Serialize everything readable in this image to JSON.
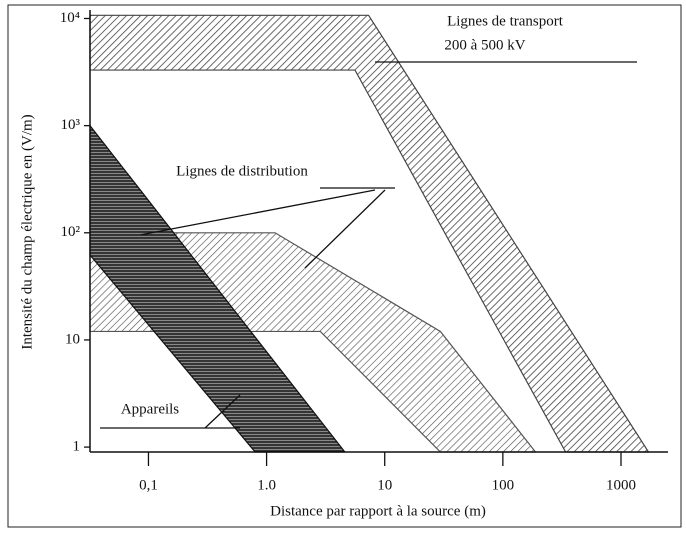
{
  "chart_data": {
    "type": "area",
    "shape": "polygon",
    "log_x": true,
    "log_y": true,
    "xlabel": "Distance par rapport à la source (m)",
    "ylabel": "Intensité du champ électrique en (V/m)",
    "xlim": [
      0.032,
      2500
    ],
    "ylim": [
      0.9,
      12000
    ],
    "xticks": [
      {
        "value": 0.1,
        "label": "0,1"
      },
      {
        "value": 1,
        "label": "1.0"
      },
      10,
      100,
      1000
    ],
    "yticks": [
      1,
      10,
      {
        "value": 100,
        "label": "10²"
      },
      {
        "value": 1000,
        "label": "10³"
      },
      {
        "value": 10000,
        "label": "10⁴"
      }
    ],
    "series": [
      {
        "name": "Lignes de transport",
        "note": "200 à 500 kV",
        "color": "#444",
        "x": [
          0.032,
          7.3,
          1710,
          340,
          5.6,
          0.032
        ],
        "values": [
          10700,
          10700,
          0.9,
          0.9,
          3300,
          3300
        ]
      },
      {
        "name": "Lignes de distribution",
        "color": "#555",
        "x": [
          0.032,
          0.114,
          1.18,
          29.6,
          189,
          29.6,
          2.85,
          0.032
        ],
        "values": [
          62,
          100,
          100,
          12,
          0.9,
          0.9,
          12,
          12
        ]
      },
      {
        "name": "Appareils",
        "color": "#111",
        "x": [
          0.032,
          4.6,
          0.8,
          0.032
        ],
        "values": [
          1000,
          0.9,
          0.9,
          62
        ]
      }
    ]
  }
}
